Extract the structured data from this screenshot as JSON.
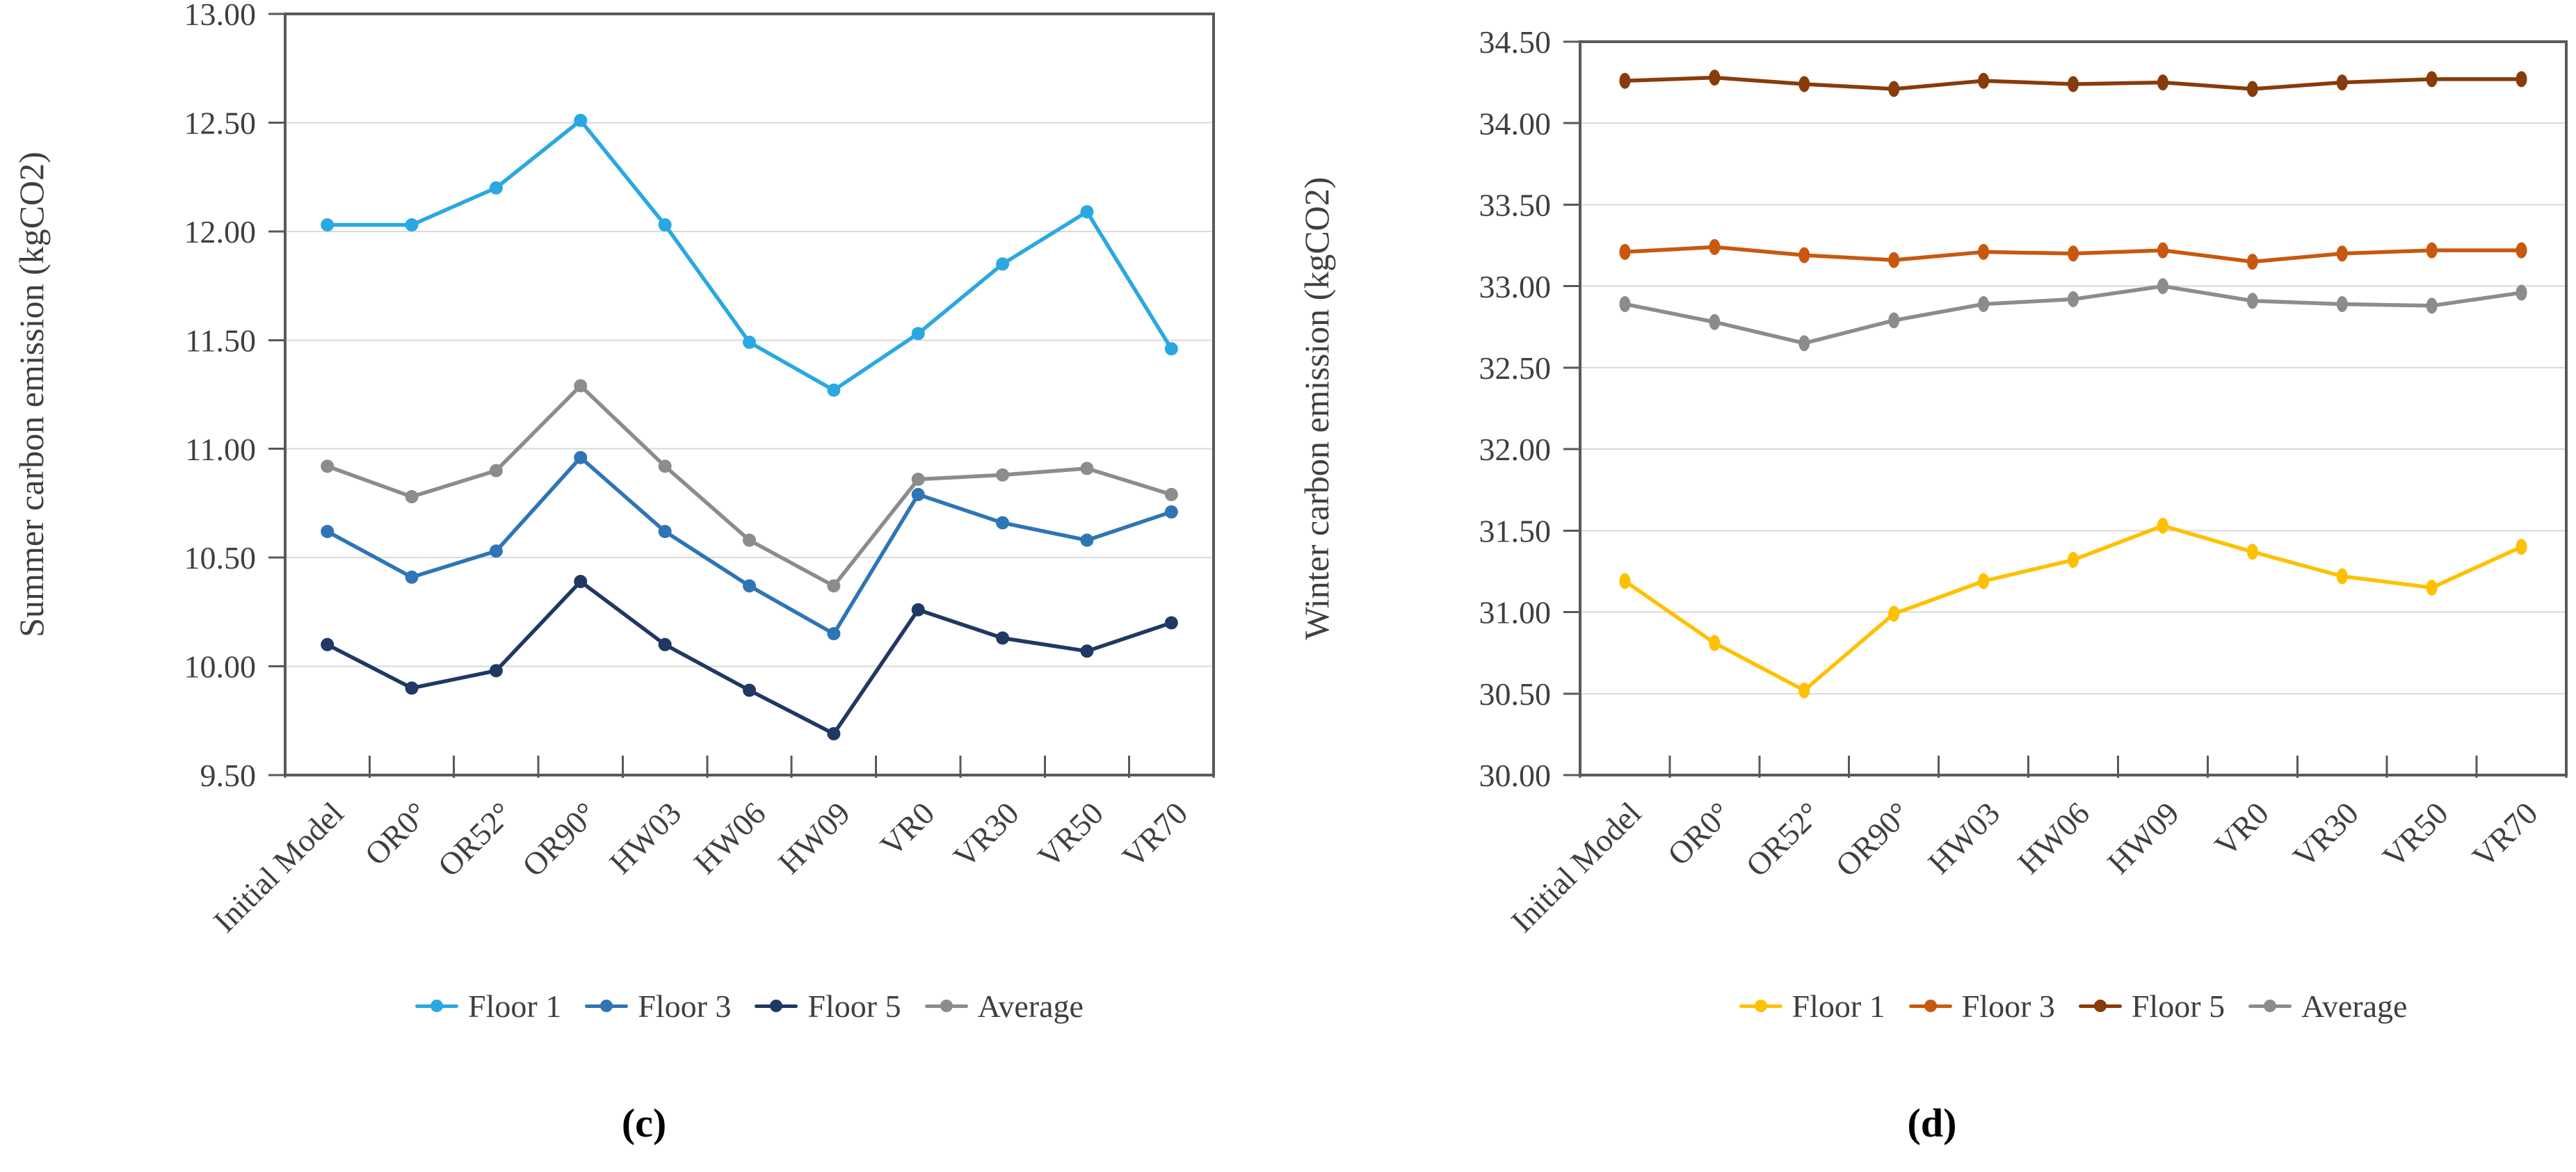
{
  "figure": {
    "background": "#ffffff",
    "text_color": "#3f3f3f",
    "axis_color": "#595959",
    "grid_color": "#d9d9d9"
  },
  "chart_data": [
    {
      "id": "c",
      "type": "line",
      "caption": "(c)",
      "ylabel": "Summer carbon emission  (kgCO2)",
      "ylim": [
        9.5,
        13.0
      ],
      "ytick_step": 0.5,
      "ytick_labels": [
        "9.50",
        "10.00",
        "10.50",
        "11.00",
        "11.50",
        "12.00",
        "12.50",
        "13.00"
      ],
      "grid": true,
      "legend_position": "bottom",
      "categories": [
        "Initial Model",
        "OR0°",
        "OR52°",
        "OR90°",
        "HW03",
        "HW06",
        "HW09",
        "VR0",
        "VR30",
        "VR50",
        "VR70"
      ],
      "series": [
        {
          "name": "Floor 1",
          "color": "#29a8e1",
          "values": [
            12.03,
            12.03,
            12.2,
            12.51,
            12.03,
            11.49,
            11.27,
            11.53,
            11.85,
            12.09,
            11.46
          ]
        },
        {
          "name": "Floor 3",
          "color": "#2e75b6",
          "values": [
            10.62,
            10.41,
            10.53,
            10.96,
            10.62,
            10.37,
            10.15,
            10.79,
            10.66,
            10.58,
            10.71
          ]
        },
        {
          "name": "Floor 5",
          "color": "#1f3864",
          "values": [
            10.1,
            9.9,
            9.98,
            10.39,
            10.1,
            9.89,
            9.69,
            10.26,
            10.13,
            10.07,
            10.2
          ]
        },
        {
          "name": "Average",
          "color": "#8c8c8c",
          "values": [
            10.92,
            10.78,
            10.9,
            11.29,
            10.92,
            10.58,
            10.37,
            10.86,
            10.88,
            10.91,
            10.79
          ]
        }
      ]
    },
    {
      "id": "d",
      "type": "line",
      "caption": "(d)",
      "ylabel": "Winter carbon emission  (kgCO2)",
      "ylim": [
        30.0,
        34.5
      ],
      "ytick_step": 0.5,
      "ytick_labels": [
        "30.00",
        "30.50",
        "31.00",
        "31.50",
        "32.00",
        "32.50",
        "33.00",
        "33.50",
        "34.00",
        "34.50"
      ],
      "grid": true,
      "legend_position": "bottom",
      "categories": [
        "Initial Model",
        "OR0°",
        "OR52°",
        "OR90°",
        "HW03",
        "HW06",
        "HW09",
        "VR0",
        "VR30",
        "VR50",
        "VR70"
      ],
      "series": [
        {
          "name": "Floor 1",
          "color": "#ffc000",
          "values": [
            31.19,
            30.81,
            30.52,
            30.99,
            31.19,
            31.32,
            31.53,
            31.37,
            31.22,
            31.15,
            31.4
          ]
        },
        {
          "name": "Floor 3",
          "color": "#c9580f",
          "values": [
            33.21,
            33.24,
            33.19,
            33.16,
            33.21,
            33.2,
            33.22,
            33.15,
            33.2,
            33.22,
            33.22
          ]
        },
        {
          "name": "Floor 5",
          "color": "#883b0b",
          "values": [
            34.26,
            34.28,
            34.24,
            34.21,
            34.26,
            34.24,
            34.25,
            34.21,
            34.25,
            34.27,
            34.27
          ]
        },
        {
          "name": "Average",
          "color": "#8c8c8c",
          "values": [
            32.89,
            32.78,
            32.65,
            32.79,
            32.89,
            32.92,
            33.0,
            32.91,
            32.89,
            32.88,
            32.96
          ]
        }
      ]
    }
  ]
}
